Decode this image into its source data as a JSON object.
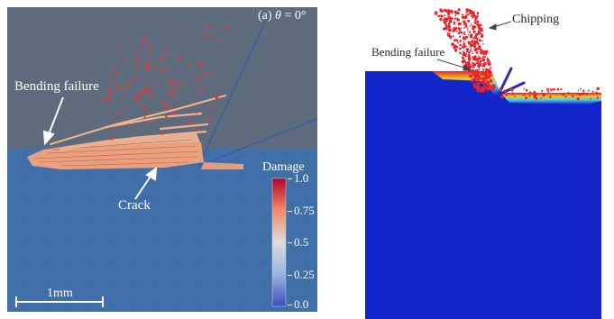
{
  "left_panel": {
    "title_prefix": "(a)",
    "theta_symbol": "θ",
    "title_suffix": " = 0°",
    "annotations": {
      "bending_failure": "Bending failure",
      "crack": "Crack"
    },
    "colorbar": {
      "title": "Damage",
      "ticks": [
        "1.0",
        "0.75",
        "0.5",
        "0.25",
        "0.0"
      ],
      "colors": {
        "high": "#b40426",
        "mid": "#dddcdc",
        "low": "#3b4cc0"
      }
    },
    "scale_bar": "1mm",
    "colors": {
      "background": "#5d6b7c",
      "workpiece": "#3f6ea8",
      "damage": "#f3a27a",
      "particles": "#e03a3a"
    }
  },
  "right_panel": {
    "annotations": {
      "chipping": "Chipping",
      "bending_failure": "Bending failure"
    },
    "colors": {
      "workpiece": "#1024c8",
      "particles": "#e8242a",
      "tool": "#2c2cb8"
    }
  }
}
